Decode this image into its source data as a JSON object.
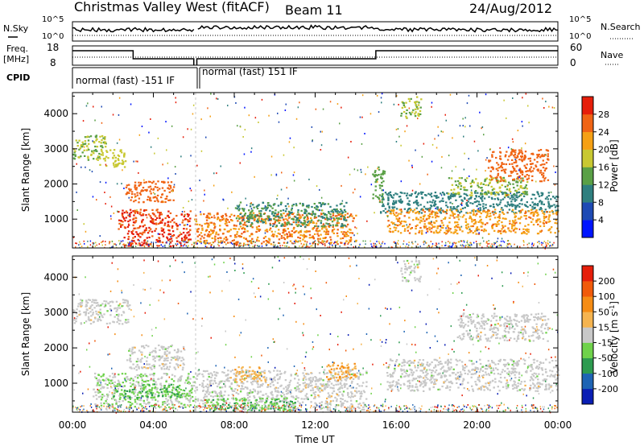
{
  "header": {
    "title": "Christmas Valley West (fitACF)",
    "beam": "Beam 11",
    "date": "24/Aug/2012"
  },
  "params": {
    "nsky_label": "N.Sky",
    "nsky_ticks": [
      "10^5",
      "10^0"
    ],
    "nsearch_label": "N.Search",
    "nsearch_ticks": [
      "10^5",
      "10^0"
    ],
    "freq_label": "Freq.",
    "freq_unit": "[MHz]",
    "freq_ticks": [
      "18",
      "8"
    ],
    "nave_label": "Nave",
    "nave_ticks": [
      "60",
      "0"
    ],
    "cpid_label": "CPID",
    "cpid_segments": [
      {
        "label": "normal (fast) -151 IF",
        "start_hour": 0.0,
        "end_hour": 6.0
      },
      {
        "label": "normal (fast) 151 IF",
        "start_hour": 6.1,
        "end_hour": 24.0
      }
    ]
  },
  "time_axis": {
    "label": "Time UT",
    "ticks": [
      "00:00",
      "04:00",
      "08:00",
      "12:00",
      "16:00",
      "20:00",
      "00:00"
    ],
    "range_hours": [
      0,
      24
    ]
  },
  "chart_data": [
    {
      "type": "heatmap",
      "title": "",
      "xlabel": "Time UT",
      "ylabel": "Slant Range [km]",
      "xlim": [
        0,
        24
      ],
      "ylim": [
        180,
        4600
      ],
      "yticks": [
        "1000",
        "2000",
        "3000",
        "4000"
      ],
      "colorbar": {
        "label": "Power [dB]",
        "ticks": [
          "4",
          "8",
          "12",
          "16",
          "20",
          "24",
          "28"
        ],
        "range": [
          0,
          32
        ],
        "colors": [
          "#0014ff",
          "#1e4ab4",
          "#2f7f7f",
          "#5aa046",
          "#c8c832",
          "#f5a014",
          "#f06414",
          "#e61e0a"
        ]
      },
      "regions": [
        {
          "t0": 0.0,
          "t1": 1.6,
          "r0": 2700,
          "r1": 3400,
          "level": 16
        },
        {
          "t0": 1.2,
          "t1": 2.6,
          "r0": 2500,
          "r1": 3000,
          "level": 18
        },
        {
          "t0": 2.6,
          "t1": 5.0,
          "r0": 1500,
          "r1": 2100,
          "level": 26
        },
        {
          "t0": 2.2,
          "t1": 5.8,
          "r0": 700,
          "r1": 1300,
          "level": 28
        },
        {
          "t0": 2.5,
          "t1": 5.8,
          "r0": 250,
          "r1": 700,
          "level": 29
        },
        {
          "t0": 6.0,
          "t1": 14.0,
          "r0": 300,
          "r1": 1200,
          "level": 24
        },
        {
          "t0": 8.0,
          "t1": 13.5,
          "r0": 800,
          "r1": 1500,
          "level": 12
        },
        {
          "t0": 14.8,
          "t1": 15.4,
          "r0": 1500,
          "r1": 2600,
          "level": 14
        },
        {
          "t0": 15.2,
          "t1": 24.0,
          "r0": 1200,
          "r1": 1800,
          "level": 10
        },
        {
          "t0": 15.5,
          "t1": 24.0,
          "r0": 600,
          "r1": 1300,
          "level": 23
        },
        {
          "t0": 18.5,
          "t1": 22.5,
          "r0": 1700,
          "r1": 2200,
          "level": 16
        },
        {
          "t0": 20.5,
          "t1": 23.5,
          "r0": 2100,
          "r1": 3000,
          "level": 26
        },
        {
          "t0": 16.2,
          "t1": 17.2,
          "r0": 3900,
          "r1": 4500,
          "level": 16
        }
      ]
    },
    {
      "type": "heatmap",
      "title": "",
      "xlabel": "Time UT",
      "ylabel": "Slant Range [km]",
      "xlim": [
        0,
        24
      ],
      "ylim": [
        180,
        4600
      ],
      "yticks": [
        "1000",
        "2000",
        "3000",
        "4000"
      ],
      "colorbar": {
        "label": "Velocity [m s^-1]",
        "ticks": [
          "200",
          "100",
          "50",
          "15",
          "-15",
          "-50",
          "-100",
          "-200"
        ],
        "range": [
          -250,
          250
        ],
        "colors": [
          "#0a1eb4",
          "#1e64b4",
          "#2d9b50",
          "#6fd24b",
          "#c8c8c8",
          "#f5b450",
          "#f58c14",
          "#f05a0a",
          "#e61e0a"
        ]
      },
      "regions": [
        {
          "t0": 0.0,
          "t1": 2.8,
          "r0": 2700,
          "r1": 3400,
          "level": 0
        },
        {
          "t0": 2.6,
          "t1": 5.5,
          "r0": 1400,
          "r1": 2100,
          "level": 0
        },
        {
          "t0": 1.0,
          "t1": 6.0,
          "r0": 300,
          "r1": 1300,
          "level": -20
        },
        {
          "t0": 2.0,
          "t1": 5.5,
          "r0": 600,
          "r1": 1000,
          "level": -80
        },
        {
          "t0": 6.0,
          "t1": 14.5,
          "r0": 250,
          "r1": 1400,
          "level": 0
        },
        {
          "t0": 6.5,
          "t1": 11.0,
          "r0": 250,
          "r1": 600,
          "level": -70
        },
        {
          "t0": 8.0,
          "t1": 9.5,
          "r0": 1050,
          "r1": 1500,
          "level": 60
        },
        {
          "t0": 12.5,
          "t1": 14.0,
          "r0": 1100,
          "r1": 1600,
          "level": 80
        },
        {
          "t0": 15.5,
          "t1": 24.0,
          "r0": 800,
          "r1": 1700,
          "level": 0
        },
        {
          "t0": 19.0,
          "t1": 23.5,
          "r0": 2200,
          "r1": 3000,
          "level": 0
        },
        {
          "t0": 16.2,
          "t1": 17.2,
          "r0": 3900,
          "r1": 4500,
          "level": 0
        }
      ]
    }
  ]
}
